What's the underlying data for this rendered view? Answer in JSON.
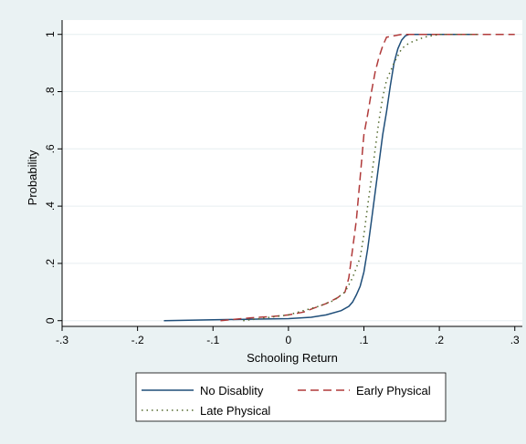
{
  "chart_data": {
    "type": "line",
    "title": "",
    "xlabel": "Schooling Return",
    "ylabel": "Probability",
    "xlim": [
      -0.3,
      0.31
    ],
    "ylim": [
      -0.02,
      1.05
    ],
    "grid": true,
    "legend_placement": "bottom",
    "x_ticks": [
      {
        "value": -0.3,
        "label": "-.3"
      },
      {
        "value": -0.2,
        "label": "-.2"
      },
      {
        "value": -0.1,
        "label": "-.1"
      },
      {
        "value": 0,
        "label": "0"
      },
      {
        "value": 0.1,
        "label": ".1"
      },
      {
        "value": 0.2,
        "label": ".2"
      },
      {
        "value": 0.3,
        "label": ".3"
      }
    ],
    "y_ticks": [
      {
        "value": 0,
        "label": "0"
      },
      {
        "value": 0.2,
        "label": ".2"
      },
      {
        "value": 0.4,
        "label": ".4"
      },
      {
        "value": 0.6,
        "label": ".6"
      },
      {
        "value": 0.8,
        "label": ".8"
      },
      {
        "value": 1,
        "label": "1"
      }
    ],
    "series": [
      {
        "name": "No Disablity",
        "color": "#1f4e79",
        "dash": "solid",
        "x": [
          -0.165,
          -0.1,
          -0.05,
          0,
          0.03,
          0.05,
          0.07,
          0.08,
          0.085,
          0.09,
          0.095,
          0.1,
          0.105,
          0.11,
          0.115,
          0.12,
          0.125,
          0.13,
          0.135,
          0.14,
          0.145,
          0.15,
          0.155,
          0.16,
          0.17,
          0.2,
          0.25
        ],
        "y": [
          0,
          0.003,
          0.005,
          0.007,
          0.012,
          0.02,
          0.035,
          0.05,
          0.065,
          0.09,
          0.12,
          0.17,
          0.25,
          0.35,
          0.45,
          0.55,
          0.65,
          0.73,
          0.82,
          0.9,
          0.95,
          0.98,
          0.995,
          1,
          1,
          1,
          1
        ]
      },
      {
        "name": "Early Physical",
        "color": "#b03a3a",
        "dash": "longdash",
        "x": [
          -0.09,
          -0.07,
          -0.05,
          -0.02,
          0,
          0.02,
          0.035,
          0.05,
          0.065,
          0.075,
          0.08,
          0.085,
          0.09,
          0.095,
          0.1,
          0.105,
          0.11,
          0.115,
          0.12,
          0.125,
          0.13,
          0.14,
          0.15,
          0.16,
          0.2,
          0.3
        ],
        "y": [
          0,
          0.005,
          0.01,
          0.015,
          0.02,
          0.03,
          0.045,
          0.06,
          0.08,
          0.1,
          0.15,
          0.25,
          0.35,
          0.5,
          0.65,
          0.72,
          0.8,
          0.87,
          0.92,
          0.96,
          0.99,
          0.995,
          1,
          1,
          1,
          1
        ]
      },
      {
        "name": "Late Physical",
        "color": "#556b2f",
        "dash": "dotted",
        "x": [
          -0.06,
          -0.03,
          0,
          0.02,
          0.04,
          0.06,
          0.075,
          0.085,
          0.095,
          0.1,
          0.105,
          0.11,
          0.115,
          0.12,
          0.125,
          0.13,
          0.14,
          0.15,
          0.16,
          0.17,
          0.18,
          0.2,
          0.25
        ],
        "y": [
          0,
          0.01,
          0.02,
          0.035,
          0.05,
          0.07,
          0.1,
          0.15,
          0.22,
          0.3,
          0.4,
          0.5,
          0.6,
          0.7,
          0.78,
          0.84,
          0.9,
          0.95,
          0.97,
          0.98,
          0.99,
          1,
          1
        ]
      }
    ]
  }
}
